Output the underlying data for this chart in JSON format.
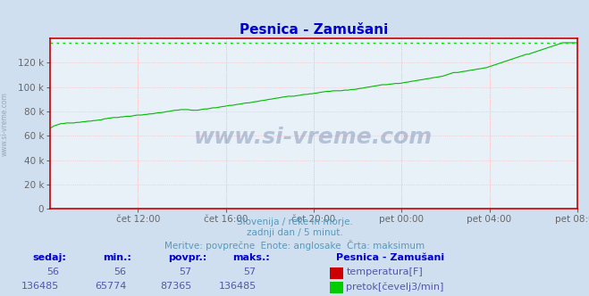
{
  "title": "Pesnica - Zamušani",
  "bg_color": "#d0dff0",
  "plot_bg_color": "#e8f0f8",
  "grid_color": "#ffb0b0",
  "x_labels": [
    "čet 12:00",
    "čet 16:00",
    "čet 20:00",
    "pet 00:00",
    "pet 04:00",
    "pet 08:00"
  ],
  "y_max": 140000,
  "y_ticks": [
    0,
    20000,
    40000,
    60000,
    80000,
    100000,
    120000
  ],
  "y_tick_labels": [
    "0",
    "20 k",
    "40 k",
    "60 k",
    "80 k",
    "100 k",
    "120 k"
  ],
  "dashed_line_value": 136485,
  "dashed_line_color": "#00dd00",
  "line_color": "#00bb00",
  "axis_color": "#cc0000",
  "title_color": "#0000cc",
  "tick_label_color": "#666666",
  "footer_line1": "Slovenija / reke in morje.",
  "footer_line2": "zadnji dan / 5 minut.",
  "footer_line3": "Meritve: povprečne  Enote: anglosake  Črta: maksimum",
  "footer_color": "#5599bb",
  "stats_label_color": "#0000cc",
  "stats_value_color": "#5555aa",
  "stats_headers": [
    "sedaj:",
    "min.:",
    "povpr.:",
    "maks.:"
  ],
  "stats_values_temp": [
    "56",
    "56",
    "57",
    "57"
  ],
  "stats_values_flow": [
    "136485",
    "65774",
    "87365",
    "136485"
  ],
  "legend_label1": "temperatura[F]",
  "legend_label2": "pretok[čevelj3/min]",
  "legend_color1": "#cc0000",
  "legend_color2": "#00cc00",
  "station_name": "Pesnica - Zamušani",
  "watermark": "www.si-vreme.com",
  "watermark_color": "#1a3a7a",
  "left_label": "www.si-vreme.com",
  "left_label_color": "#8899aa",
  "flow_data_approx": [
    66000,
    67000,
    68000,
    68500,
    69000,
    69500,
    70000,
    70000,
    70200,
    70500,
    70500,
    70500,
    70500,
    70500,
    70800,
    71000,
    71000,
    71200,
    71500,
    71500,
    71800,
    72000,
    72000,
    72200,
    72500,
    72500,
    72800,
    73000,
    73000,
    73500,
    74000,
    74000,
    74500,
    74500,
    74800,
    75000,
    75000,
    75000,
    75200,
    75500,
    75500,
    75800,
    76000,
    76000,
    76000,
    76200,
    76500,
    76800,
    77000,
    77000,
    77000,
    77200,
    77500,
    77500,
    77800,
    78000,
    78000,
    78200,
    78500,
    78800,
    79000,
    79000,
    79200,
    79500,
    79800,
    80000,
    80200,
    80500,
    80800,
    81000,
    81000,
    81200,
    81500,
    81500,
    81500,
    81500,
    81500,
    81200,
    81000,
    81000,
    81000,
    81000,
    81200,
    81500,
    81800,
    82000,
    82000,
    82200,
    82500,
    82800,
    83000,
    83000,
    83200,
    83500,
    83800,
    84000,
    84200,
    84500,
    84800,
    85000,
    85000,
    85200,
    85500,
    85800,
    86000,
    86200,
    86500,
    86800,
    87000,
    87000,
    87200,
    87500,
    87800,
    88000,
    88200,
    88500,
    88800,
    89000,
    89200,
    89500,
    89800,
    90000,
    90200,
    90500,
    90800,
    91000,
    91200,
    91500,
    91800,
    92000,
    92200,
    92500,
    92500,
    92500,
    92500,
    92800,
    93000,
    93200,
    93500,
    93800,
    94000,
    94000,
    94200,
    94500,
    94500,
    94800,
    95000,
    95200,
    95500,
    95800,
    96000,
    96200,
    96500,
    96500,
    96500,
    96800,
    97000,
    97000,
    97000,
    97000,
    97000,
    97200,
    97500,
    97500,
    97500,
    97800,
    98000,
    98000,
    98200,
    98500,
    98800,
    99000,
    99200,
    99500,
    99800,
    100000,
    100200,
    100500,
    100800,
    101000,
    101200,
    101500,
    101800,
    102000,
    102000,
    102000,
    102200,
    102500,
    102500,
    102800,
    103000,
    103000,
    103000,
    103200,
    103500,
    103800,
    104000,
    104200,
    104500,
    104800,
    105000,
    105200,
    105500,
    105800,
    106000,
    106200,
    106500,
    106800,
    107000,
    107200,
    107500,
    107800,
    108000,
    108200,
    108500,
    108800,
    109000,
    109500,
    110000,
    110500,
    111000,
    111500,
    112000,
    112000,
    112000,
    112200,
    112500,
    112800,
    113000,
    113200,
    113500,
    113800,
    114000,
    114200,
    114500,
    114800,
    115000,
    115200,
    115500,
    115800,
    116000,
    116500,
    117000,
    117500,
    118000,
    118500,
    119000,
    119500,
    120000,
    120500,
    121000,
    121500,
    122000,
    122500,
    123000,
    123500,
    124000,
    124500,
    125000,
    125500,
    126000,
    126500,
    127000,
    127000,
    127500,
    128000,
    128500,
    129000,
    129500,
    130000,
    130500,
    131000,
    131500,
    132000,
    132500,
    133000,
    133500,
    134000,
    134500,
    135000,
    135500,
    136000,
    136485,
    136485,
    136485,
    136485,
    136485,
    136485,
    136485,
    136485,
    136485
  ]
}
